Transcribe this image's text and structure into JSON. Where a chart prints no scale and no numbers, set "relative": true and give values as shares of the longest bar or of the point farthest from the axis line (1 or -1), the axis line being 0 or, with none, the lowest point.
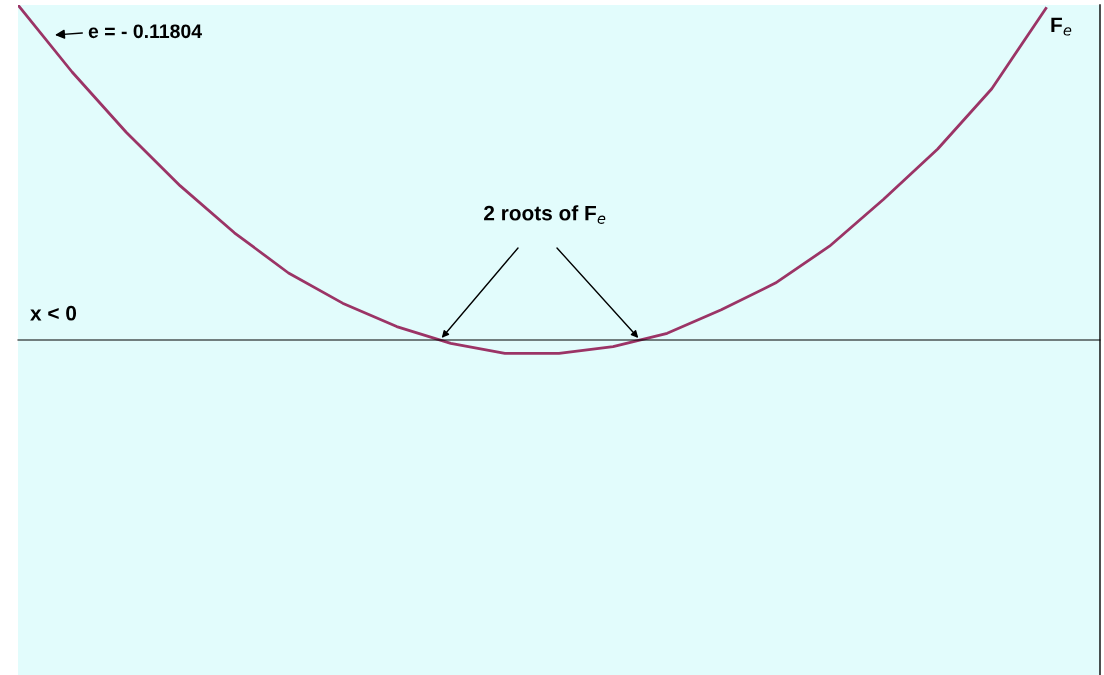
{
  "chart_data": {
    "type": "line",
    "relative": true,
    "categories": [
      null,
      null,
      null,
      null,
      null,
      null,
      null,
      null,
      null,
      null,
      null,
      null,
      null,
      null,
      null,
      null,
      null,
      null,
      null,
      null,
      null
    ],
    "series": [
      {
        "name": "F$_{e}$",
        "color": "#9b3466",
        "values": [
          1.0,
          0.8,
          0.62,
          0.46,
          0.32,
          0.2,
          0.11,
          0.04,
          -0.01,
          -0.04,
          -0.04,
          -0.02,
          0.02,
          0.09,
          0.17,
          0.28,
          0.42,
          0.57,
          0.75,
          0.99,
          null
        ]
      }
    ],
    "annotations": [
      "e = - 0.11804",
      "2 roots of F$_{e}$",
      "x < 0"
    ],
    "marker": "none",
    "line_style": "solid",
    "legend": false
  }
}
